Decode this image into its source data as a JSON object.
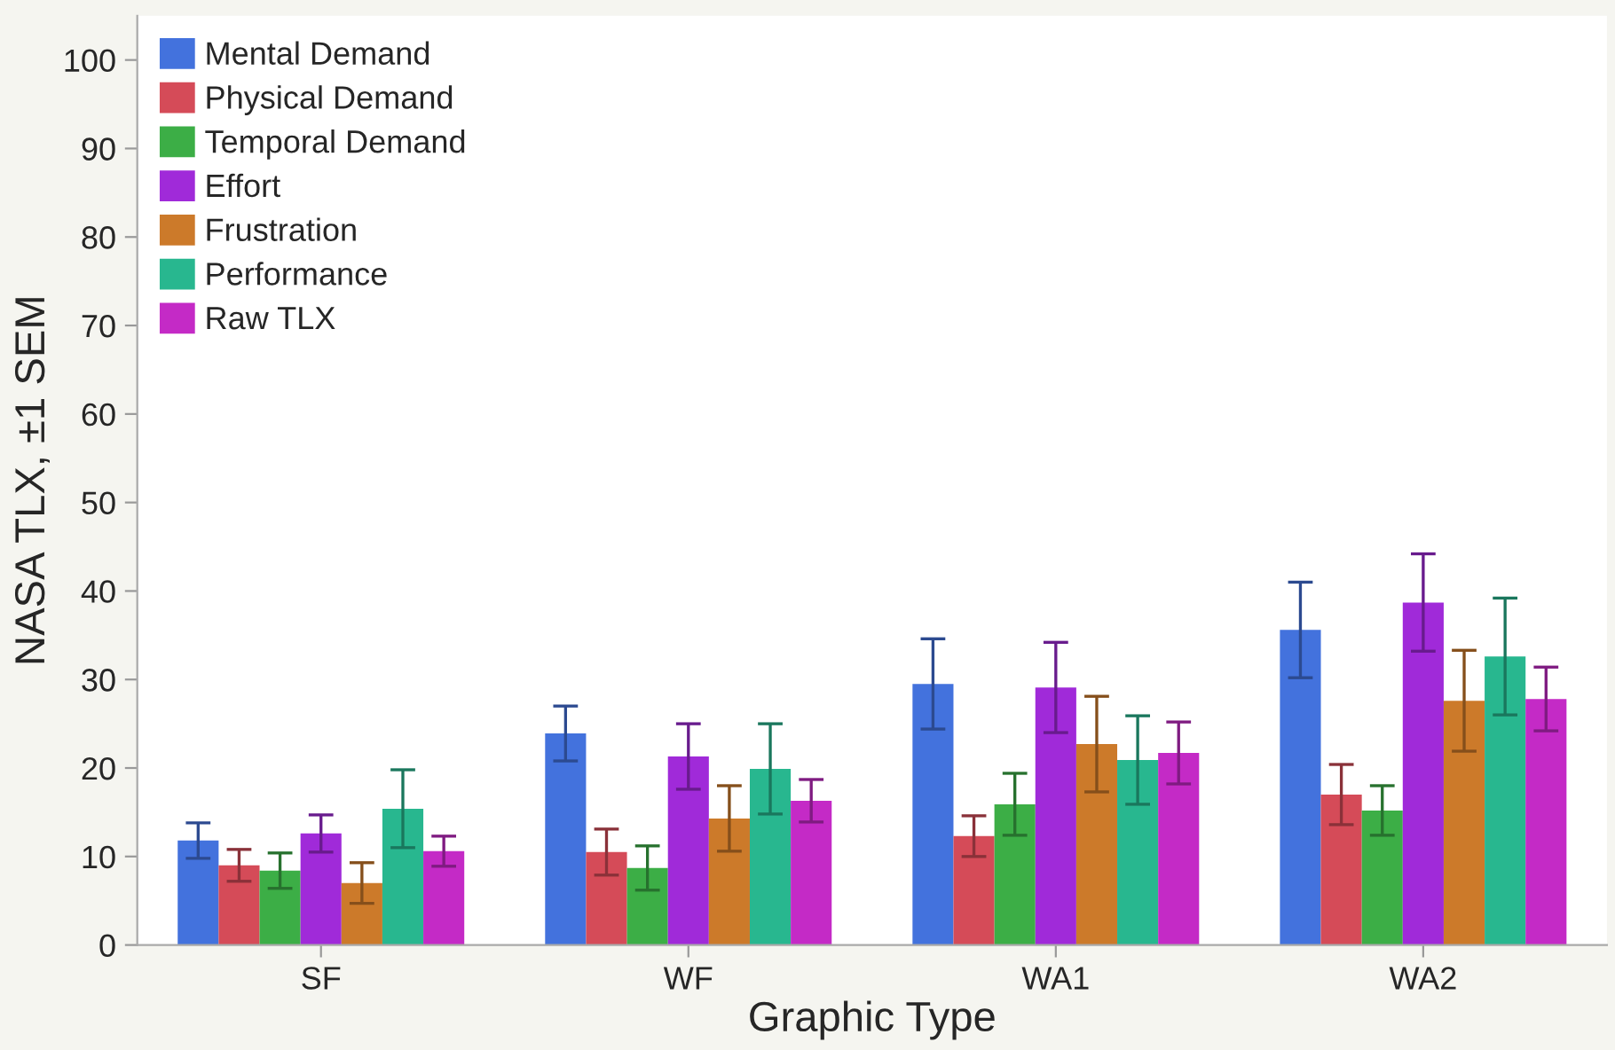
{
  "chart_data": {
    "type": "bar",
    "xlabel": "Graphic Type",
    "ylabel": "NASA TLX, ±1 SEM",
    "categories": [
      "SF",
      "WF",
      "WA1",
      "WA2"
    ],
    "series": [
      {
        "name": "Mental Demand",
        "color": "#4372dd",
        "values": [
          11.8,
          23.9,
          29.5,
          35.6
        ],
        "errors": [
          2.0,
          3.1,
          5.1,
          5.4
        ]
      },
      {
        "name": "Physical Demand",
        "color": "#d54b58",
        "values": [
          9.0,
          10.5,
          12.3,
          17.0
        ],
        "errors": [
          1.8,
          2.6,
          2.3,
          3.4
        ]
      },
      {
        "name": "Temporal Demand",
        "color": "#3cae46",
        "values": [
          8.4,
          8.7,
          15.9,
          15.2
        ],
        "errors": [
          2.0,
          2.5,
          3.5,
          2.8
        ]
      },
      {
        "name": "Effort",
        "color": "#a02ad9",
        "values": [
          12.6,
          21.3,
          29.1,
          38.7
        ],
        "errors": [
          2.1,
          3.7,
          5.1,
          5.5
        ]
      },
      {
        "name": "Frustration",
        "color": "#cc7a2a",
        "values": [
          7.0,
          14.3,
          22.7,
          27.6
        ],
        "errors": [
          2.3,
          3.7,
          5.4,
          5.7
        ]
      },
      {
        "name": "Performance",
        "color": "#28b78f",
        "values": [
          15.4,
          19.9,
          20.9,
          32.6
        ],
        "errors": [
          4.4,
          5.1,
          5.0,
          6.6
        ]
      },
      {
        "name": "Raw TLX",
        "color": "#c42ac6",
        "values": [
          10.6,
          16.3,
          21.7,
          27.8
        ],
        "errors": [
          1.7,
          2.4,
          3.5,
          3.6
        ]
      }
    ],
    "ylim": [
      0,
      105
    ],
    "yticks": [
      0,
      10,
      20,
      30,
      40,
      50,
      60,
      70,
      80,
      90,
      100
    ],
    "grid": false,
    "legend": "top left"
  }
}
